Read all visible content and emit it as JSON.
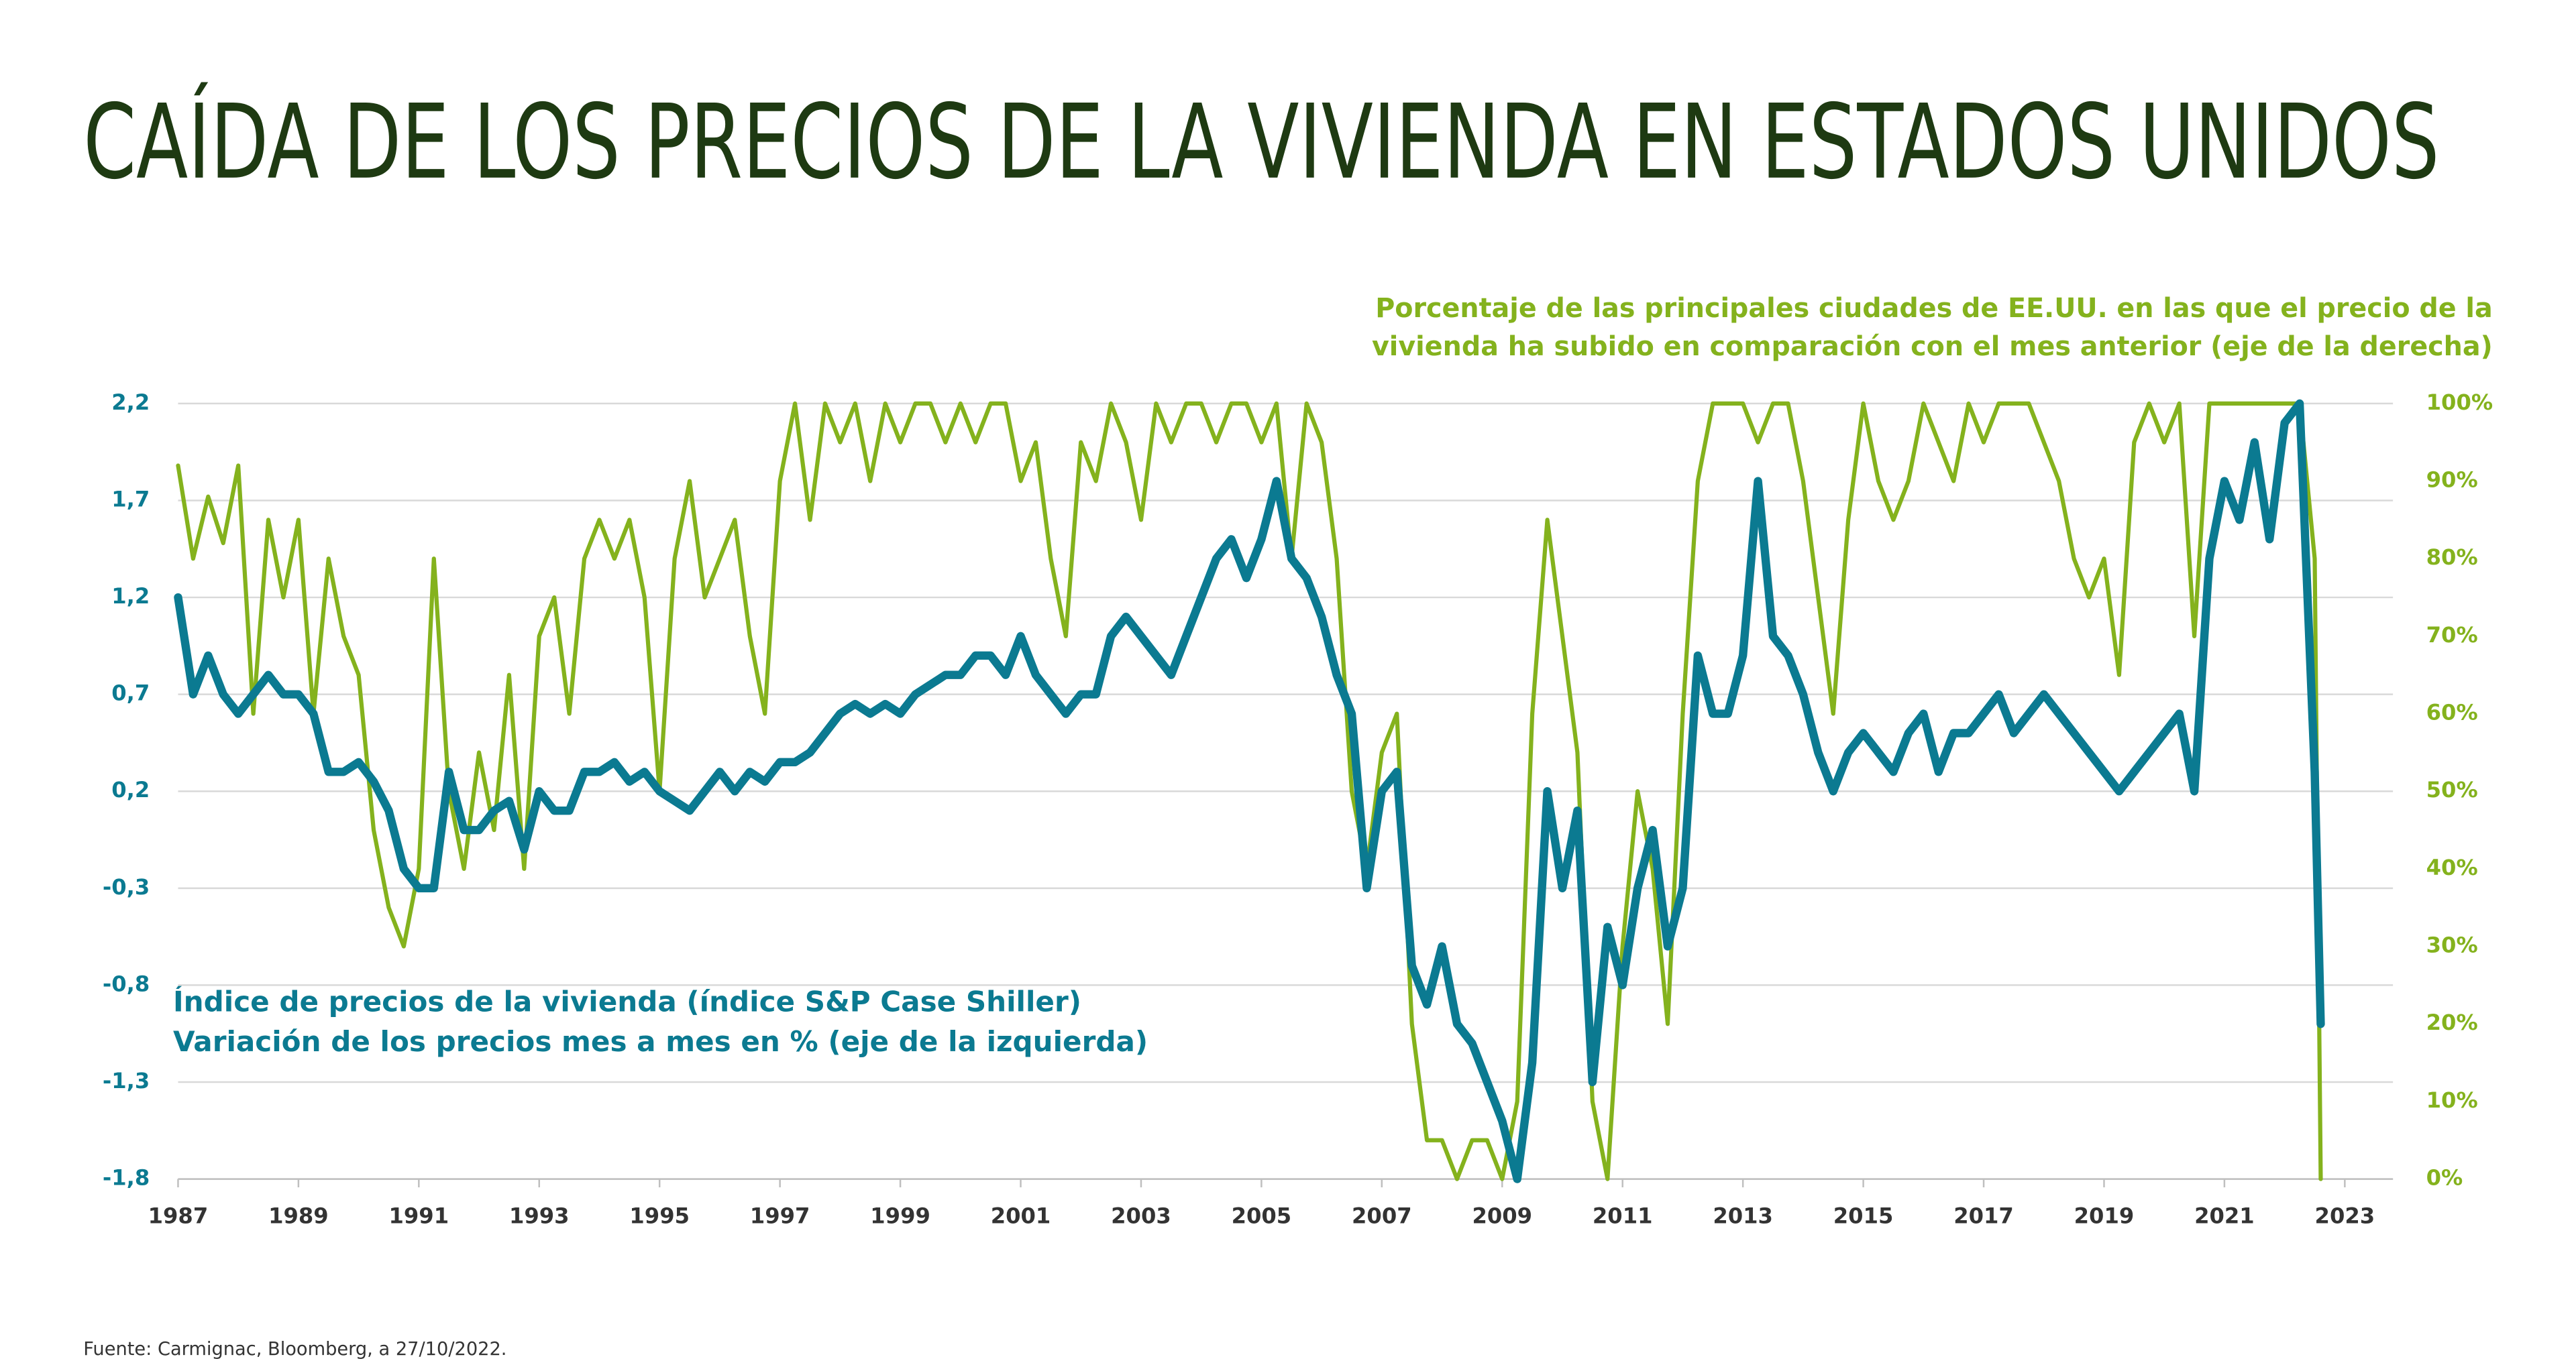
{
  "chart_data": {
    "type": "line",
    "title": "CAÍDA DE LOS PRECIOS DE LA VIVIENDA EN ESTADOS UNIDOS",
    "y2_label": [
      "Porcentaje de las principales ciudades de EE.UU. en las que el precio de la",
      "vivienda ha subido en comparación con el mes anterior (eje de la derecha)"
    ],
    "y_label": [
      "Índice de precios de la vivienda (índice S&P Case Shiller)",
      "Variación de los precios mes a mes en % (eje de la izquierda)"
    ],
    "source": "Fuente: Carmignac, Bloomberg, a 27/10/2022.",
    "x": [
      1987,
      1987.25,
      1987.5,
      1987.75,
      1988,
      1988.25,
      1988.5,
      1988.75,
      1989,
      1989.25,
      1989.5,
      1989.75,
      1990,
      1990.25,
      1990.5,
      1990.75,
      1991,
      1991.25,
      1991.5,
      1991.75,
      1992,
      1992.25,
      1992.5,
      1992.75,
      1993,
      1993.25,
      1993.5,
      1993.75,
      1994,
      1994.25,
      1994.5,
      1994.75,
      1995,
      1995.25,
      1995.5,
      1995.75,
      1996,
      1996.25,
      1996.5,
      1996.75,
      1997,
      1997.25,
      1997.5,
      1997.75,
      1998,
      1998.25,
      1998.5,
      1998.75,
      1999,
      1999.25,
      1999.5,
      1999.75,
      2000,
      2000.25,
      2000.5,
      2000.75,
      2001,
      2001.25,
      2001.5,
      2001.75,
      2002,
      2002.25,
      2002.5,
      2002.75,
      2003,
      2003.25,
      2003.5,
      2003.75,
      2004,
      2004.25,
      2004.5,
      2004.75,
      2005,
      2005.25,
      2005.5,
      2005.75,
      2006,
      2006.25,
      2006.5,
      2006.75,
      2007,
      2007.25,
      2007.5,
      2007.75,
      2008,
      2008.25,
      2008.5,
      2008.75,
      2009,
      2009.25,
      2009.5,
      2009.75,
      2010,
      2010.25,
      2010.5,
      2010.75,
      2011,
      2011.25,
      2011.5,
      2011.75,
      2012,
      2012.25,
      2012.5,
      2012.75,
      2013,
      2013.25,
      2013.5,
      2013.75,
      2014,
      2014.25,
      2014.5,
      2014.75,
      2015,
      2015.25,
      2015.5,
      2015.75,
      2016,
      2016.25,
      2016.5,
      2016.75,
      2017,
      2017.25,
      2017.5,
      2017.75,
      2018,
      2018.25,
      2018.5,
      2018.75,
      2019,
      2019.25,
      2019.5,
      2019.75,
      2020,
      2020.25,
      2020.5,
      2020.75,
      2021,
      2021.25,
      2021.5,
      2021.75,
      2022,
      2022.25,
      2022.5,
      2022.6
    ],
    "series": [
      {
        "name": "Índice de precios de la vivienda (índice S&P Case Shiller)",
        "color": "#0b7a91",
        "values": [
          1.2,
          0.7,
          0.9,
          0.7,
          0.6,
          0.7,
          0.8,
          0.7,
          0.7,
          0.6,
          0.3,
          0.3,
          0.35,
          0.25,
          0.1,
          -0.2,
          -0.3,
          -0.3,
          0.3,
          0.0,
          0.0,
          0.1,
          0.15,
          -0.1,
          0.2,
          0.1,
          0.1,
          0.3,
          0.3,
          0.35,
          0.25,
          0.3,
          0.2,
          0.15,
          0.1,
          0.2,
          0.3,
          0.2,
          0.3,
          0.25,
          0.35,
          0.35,
          0.4,
          0.5,
          0.6,
          0.65,
          0.6,
          0.65,
          0.6,
          0.7,
          0.75,
          0.8,
          0.8,
          0.9,
          0.9,
          0.8,
          1.0,
          0.8,
          0.7,
          0.6,
          0.7,
          0.7,
          1.0,
          1.1,
          1.0,
          0.9,
          0.8,
          1.0,
          1.2,
          1.4,
          1.5,
          1.3,
          1.5,
          1.8,
          1.4,
          1.3,
          1.1,
          0.8,
          0.6,
          -0.3,
          0.2,
          0.3,
          -0.7,
          -0.9,
          -0.6,
          -1.0,
          -1.1,
          -1.3,
          -1.5,
          -1.8,
          -1.2,
          0.2,
          -0.3,
          0.1,
          -1.3,
          -0.5,
          -0.8,
          -0.3,
          0.0,
          -0.6,
          -0.3,
          0.9,
          0.6,
          0.6,
          0.9,
          1.8,
          1.0,
          0.9,
          0.7,
          0.4,
          0.2,
          0.4,
          0.5,
          0.4,
          0.3,
          0.5,
          0.6,
          0.3,
          0.5,
          0.5,
          0.6,
          0.7,
          0.5,
          0.6,
          0.7,
          0.6,
          0.5,
          0.4,
          0.3,
          0.2,
          0.3,
          0.4,
          0.5,
          0.6,
          0.2,
          1.4,
          1.8,
          1.6,
          2.0,
          1.5,
          2.1,
          2.2,
          0.3,
          -1.0
        ]
      },
      {
        "name": "Porcentaje de las principales ciudades de EE.UU.",
        "color": "#84b21d",
        "axis": "y2",
        "values": [
          92,
          80,
          88,
          82,
          92,
          60,
          85,
          75,
          85,
          60,
          80,
          70,
          65,
          45,
          35,
          30,
          40,
          80,
          50,
          40,
          55,
          45,
          65,
          40,
          70,
          75,
          60,
          80,
          85,
          80,
          85,
          75,
          50,
          80,
          90,
          75,
          80,
          85,
          70,
          60,
          90,
          100,
          85,
          100,
          95,
          100,
          90,
          100,
          95,
          100,
          100,
          95,
          100,
          95,
          100,
          100,
          90,
          95,
          80,
          70,
          95,
          90,
          100,
          95,
          85,
          100,
          95,
          100,
          100,
          95,
          100,
          100,
          95,
          100,
          80,
          100,
          95,
          80,
          50,
          40,
          55,
          60,
          20,
          5,
          5,
          0,
          5,
          5,
          0,
          10,
          60,
          85,
          70,
          55,
          10,
          0,
          30,
          50,
          40,
          20,
          60,
          90,
          100,
          100,
          100,
          95,
          100,
          100,
          90,
          75,
          60,
          85,
          100,
          90,
          85,
          90,
          100,
          95,
          90,
          100,
          95,
          100,
          100,
          100,
          95,
          90,
          80,
          75,
          80,
          65,
          95,
          100,
          95,
          100,
          70,
          100,
          100,
          100,
          100,
          100,
          100,
          100,
          80,
          0
        ]
      }
    ],
    "xlim": [
      1987,
      2023.8
    ],
    "xticks": [
      1987,
      1989,
      1991,
      1993,
      1995,
      1997,
      1999,
      2001,
      2003,
      2005,
      2007,
      2009,
      2011,
      2013,
      2015,
      2017,
      2019,
      2021,
      2023
    ],
    "ylim": [
      -1.8,
      2.2
    ],
    "yticks": [
      {
        "value": 2.2,
        "label": "2,2"
      },
      {
        "value": 1.7,
        "label": "1,7"
      },
      {
        "value": 1.2,
        "label": "1,2"
      },
      {
        "value": 0.7,
        "label": "0,7"
      },
      {
        "value": 0.2,
        "label": "0,2"
      },
      {
        "value": -0.3,
        "label": "-0,3"
      },
      {
        "value": -0.8,
        "label": "-0,8"
      },
      {
        "value": -1.3,
        "label": "-1,3"
      },
      {
        "value": -1.8,
        "label": "-1,8"
      }
    ],
    "y2lim": [
      0,
      100
    ],
    "y2ticks": [
      {
        "value": 100,
        "label": "100%"
      },
      {
        "value": 90,
        "label": "90%"
      },
      {
        "value": 80,
        "label": "80%"
      },
      {
        "value": 70,
        "label": "70%"
      },
      {
        "value": 60,
        "label": "60%"
      },
      {
        "value": 50,
        "label": "50%"
      },
      {
        "value": 40,
        "label": "40%"
      },
      {
        "value": 30,
        "label": "30%"
      },
      {
        "value": 20,
        "label": "20%"
      },
      {
        "value": 10,
        "label": "10%"
      },
      {
        "value": 0,
        "label": "0%"
      }
    ],
    "grid": true
  }
}
